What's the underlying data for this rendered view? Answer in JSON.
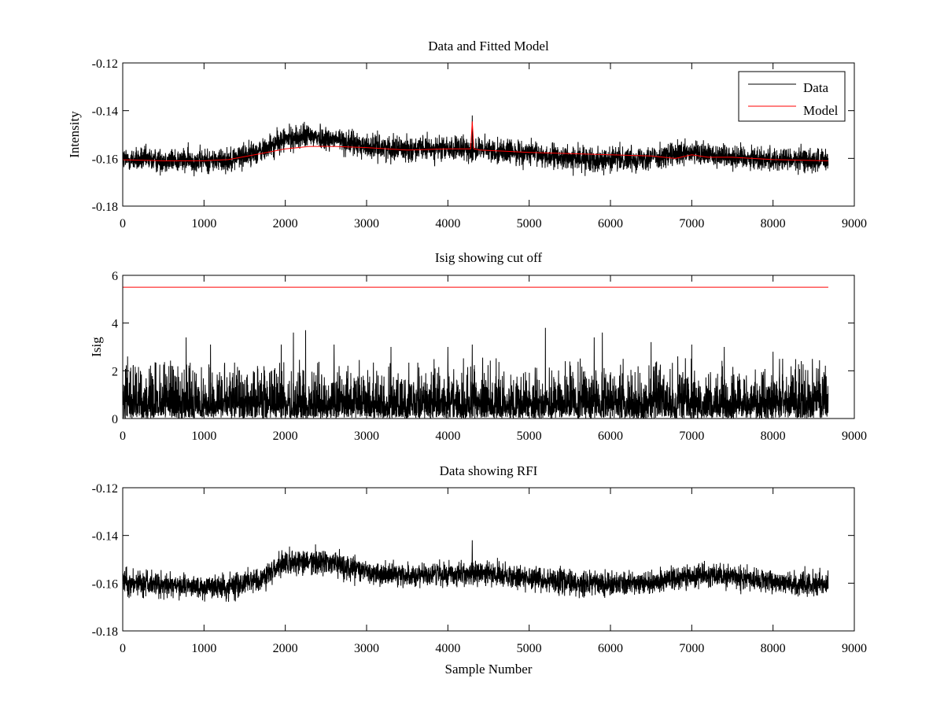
{
  "chart_data": [
    {
      "type": "line",
      "title": "Data and Fitted Model",
      "xlabel": "",
      "ylabel": "Intensity",
      "xlim": [
        0,
        9000
      ],
      "ylim": [
        -0.18,
        -0.12
      ],
      "xticks": [
        0,
        1000,
        2000,
        3000,
        4000,
        5000,
        6000,
        7000,
        8000,
        9000
      ],
      "yticks": [
        -0.18,
        -0.16,
        -0.14,
        -0.12
      ],
      "legend": {
        "position": "top-right",
        "entries": [
          "Data",
          "Model"
        ]
      },
      "series": [
        {
          "name": "Data",
          "color": "#000000",
          "style": "noisy",
          "n_samples": 8680,
          "noise_half_width": 0.0055,
          "trend_x": [
            0,
            1000,
            1300,
            1700,
            2000,
            2300,
            2600,
            3000,
            3500,
            4000,
            4500,
            5000,
            5500,
            6000,
            6500,
            7000,
            7500,
            8000,
            8680
          ],
          "trend_y": [
            -0.1605,
            -0.161,
            -0.1605,
            -0.157,
            -0.152,
            -0.1505,
            -0.152,
            -0.155,
            -0.156,
            -0.156,
            -0.1565,
            -0.158,
            -0.16,
            -0.1605,
            -0.1595,
            -0.158,
            -0.159,
            -0.1605,
            -0.161
          ],
          "spikes": [
            {
              "x": 4300,
              "y": -0.142
            }
          ]
        },
        {
          "name": "Model",
          "color": "#ff0000",
          "x": [
            0,
            500,
            1000,
            1300,
            1700,
            2000,
            2300,
            2600,
            3000,
            3500,
            4000,
            4280,
            4300,
            4320,
            4400,
            5000,
            5500,
            6000,
            6500,
            6800,
            7000,
            7200,
            7500,
            8000,
            8680
          ],
          "y": [
            -0.1606,
            -0.161,
            -0.161,
            -0.1605,
            -0.158,
            -0.156,
            -0.155,
            -0.155,
            -0.1555,
            -0.1565,
            -0.156,
            -0.156,
            -0.1445,
            -0.156,
            -0.1565,
            -0.1575,
            -0.158,
            -0.1585,
            -0.159,
            -0.16,
            -0.1585,
            -0.1595,
            -0.1595,
            -0.1605,
            -0.161
          ]
        }
      ]
    },
    {
      "type": "line",
      "title": "Isig showing cut off",
      "xlabel": "",
      "ylabel": "Isig",
      "xlim": [
        0,
        9000
      ],
      "ylim": [
        0,
        6
      ],
      "xticks": [
        0,
        1000,
        2000,
        3000,
        4000,
        5000,
        6000,
        7000,
        8000,
        9000
      ],
      "yticks": [
        0,
        2,
        4,
        6
      ],
      "series": [
        {
          "name": "Isig",
          "color": "#000000",
          "style": "abs-noise",
          "n_samples": 8680,
          "typical_max": 2.2,
          "peaks": [
            {
              "x": 60,
              "y": 2.6
            },
            {
              "x": 780,
              "y": 3.4
            },
            {
              "x": 1080,
              "y": 3.1
            },
            {
              "x": 1950,
              "y": 3.1
            },
            {
              "x": 2100,
              "y": 3.6
            },
            {
              "x": 2250,
              "y": 3.7
            },
            {
              "x": 2600,
              "y": 3.1
            },
            {
              "x": 3300,
              "y": 3.0
            },
            {
              "x": 4000,
              "y": 3.0
            },
            {
              "x": 4300,
              "y": 3.1
            },
            {
              "x": 5200,
              "y": 3.8
            },
            {
              "x": 5800,
              "y": 3.4
            },
            {
              "x": 5900,
              "y": 3.6
            },
            {
              "x": 6500,
              "y": 3.2
            },
            {
              "x": 7000,
              "y": 3.1
            },
            {
              "x": 7400,
              "y": 3.0
            },
            {
              "x": 8000,
              "y": 2.8
            }
          ]
        },
        {
          "name": "cut off",
          "color": "#ff0000",
          "x": [
            0,
            8680
          ],
          "y": [
            5.5,
            5.5
          ]
        }
      ]
    },
    {
      "type": "line",
      "title": "Data showing RFI",
      "xlabel": "Sample Number",
      "ylabel": "",
      "xlim": [
        0,
        9000
      ],
      "ylim": [
        -0.18,
        -0.12
      ],
      "xticks": [
        0,
        1000,
        2000,
        3000,
        4000,
        5000,
        6000,
        7000,
        8000,
        9000
      ],
      "yticks": [
        -0.18,
        -0.16,
        -0.14,
        -0.12
      ],
      "series": [
        {
          "name": "Data",
          "color": "#000000",
          "style": "noisy",
          "n_samples": 8680,
          "noise_half_width": 0.0055,
          "trend_x": [
            0,
            1000,
            1300,
            1700,
            2000,
            2300,
            2600,
            3000,
            3500,
            4000,
            4500,
            5000,
            5500,
            6000,
            6500,
            7000,
            7500,
            8000,
            8680
          ],
          "trend_y": [
            -0.1595,
            -0.1615,
            -0.1615,
            -0.158,
            -0.152,
            -0.1505,
            -0.152,
            -0.1555,
            -0.157,
            -0.156,
            -0.156,
            -0.158,
            -0.16,
            -0.1605,
            -0.16,
            -0.157,
            -0.1575,
            -0.1595,
            -0.1605
          ],
          "spikes": [
            {
              "x": 4300,
              "y": -0.142
            }
          ]
        }
      ]
    }
  ]
}
